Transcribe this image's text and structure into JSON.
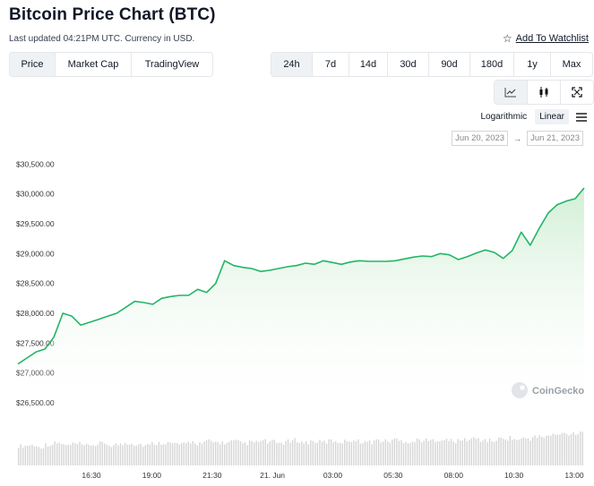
{
  "header": {
    "title": "Bitcoin Price Chart (BTC)",
    "updated": "Last updated 04:21PM UTC. Currency in USD.",
    "watchlist_label": "Add To Watchlist"
  },
  "metric_tabs": [
    {
      "label": "Price",
      "active": true
    },
    {
      "label": "Market Cap",
      "active": false
    },
    {
      "label": "TradingView",
      "active": false
    }
  ],
  "range_tabs": [
    {
      "label": "24h",
      "active": true
    },
    {
      "label": "7d",
      "active": false
    },
    {
      "label": "14d",
      "active": false
    },
    {
      "label": "30d",
      "active": false
    },
    {
      "label": "90d",
      "active": false
    },
    {
      "label": "180d",
      "active": false
    },
    {
      "label": "1y",
      "active": false
    },
    {
      "label": "Max",
      "active": false
    }
  ],
  "view_icons": [
    "line-chart-icon",
    "candlestick-icon",
    "fullscreen-icon"
  ],
  "scale": {
    "options": [
      "Logarithmic",
      "Linear"
    ],
    "active": "Linear"
  },
  "date_range": {
    "from": "Jun 20, 2023",
    "to": "Jun 21, 2023",
    "arrow": "→"
  },
  "watermark": "CoinGecko",
  "colors": {
    "line": "#22b567",
    "area": "#e3f6e5",
    "volume": "#d5d5d5",
    "active_bg": "#eff2f5"
  },
  "chart_data": {
    "type": "area",
    "ylim": [
      26200,
      30700
    ],
    "y_ticks": [
      30500,
      30000,
      29500,
      29000,
      28500,
      28000,
      27500,
      27000,
      26500
    ],
    "y_tick_labels": [
      "$30,500.00",
      "$30,000.00",
      "$29,500.00",
      "$29,000.00",
      "$28,500.00",
      "$28,000.00",
      "$27,500.00",
      "$27,000.00",
      "$26,500.00"
    ],
    "x_ticks": [
      "16:30",
      "19:00",
      "21:30",
      "21. Jun",
      "03:00",
      "05:30",
      "08:00",
      "10:30",
      "13:00"
    ],
    "price_series": [
      27150,
      27250,
      27350,
      27400,
      27600,
      28000,
      27950,
      27800,
      27850,
      27900,
      27950,
      28000,
      28100,
      28200,
      28180,
      28150,
      28250,
      28280,
      28300,
      28300,
      28400,
      28350,
      28500,
      28880,
      28800,
      28770,
      28750,
      28700,
      28720,
      28750,
      28780,
      28800,
      28840,
      28820,
      28880,
      28850,
      28820,
      28860,
      28880,
      28870,
      28870,
      28870,
      28880,
      28910,
      28940,
      28960,
      28950,
      29000,
      28980,
      28900,
      28950,
      29010,
      29060,
      29020,
      28920,
      29050,
      29360,
      29140,
      29420,
      29680,
      29820,
      29880,
      29920,
      30100
    ],
    "volume_series": [
      0.48,
      0.5,
      0.46,
      0.52,
      0.55,
      0.5,
      0.53,
      0.49,
      0.51,
      0.54,
      0.5,
      0.52,
      0.56,
      0.53,
      0.5,
      0.55,
      0.57,
      0.54,
      0.52,
      0.58,
      0.55,
      0.6,
      0.57,
      0.56,
      0.59,
      0.55,
      0.57,
      0.6,
      0.58,
      0.56,
      0.59,
      0.62,
      0.57,
      0.6,
      0.58,
      0.61,
      0.59,
      0.63,
      0.6,
      0.58,
      0.62,
      0.6,
      0.64,
      0.61,
      0.59,
      0.63,
      0.61,
      0.65,
      0.62,
      0.6,
      0.64,
      0.66,
      0.63,
      0.61,
      0.65,
      0.68,
      0.64,
      0.67,
      0.7,
      0.72,
      0.75,
      0.78,
      0.8,
      0.85
    ]
  }
}
